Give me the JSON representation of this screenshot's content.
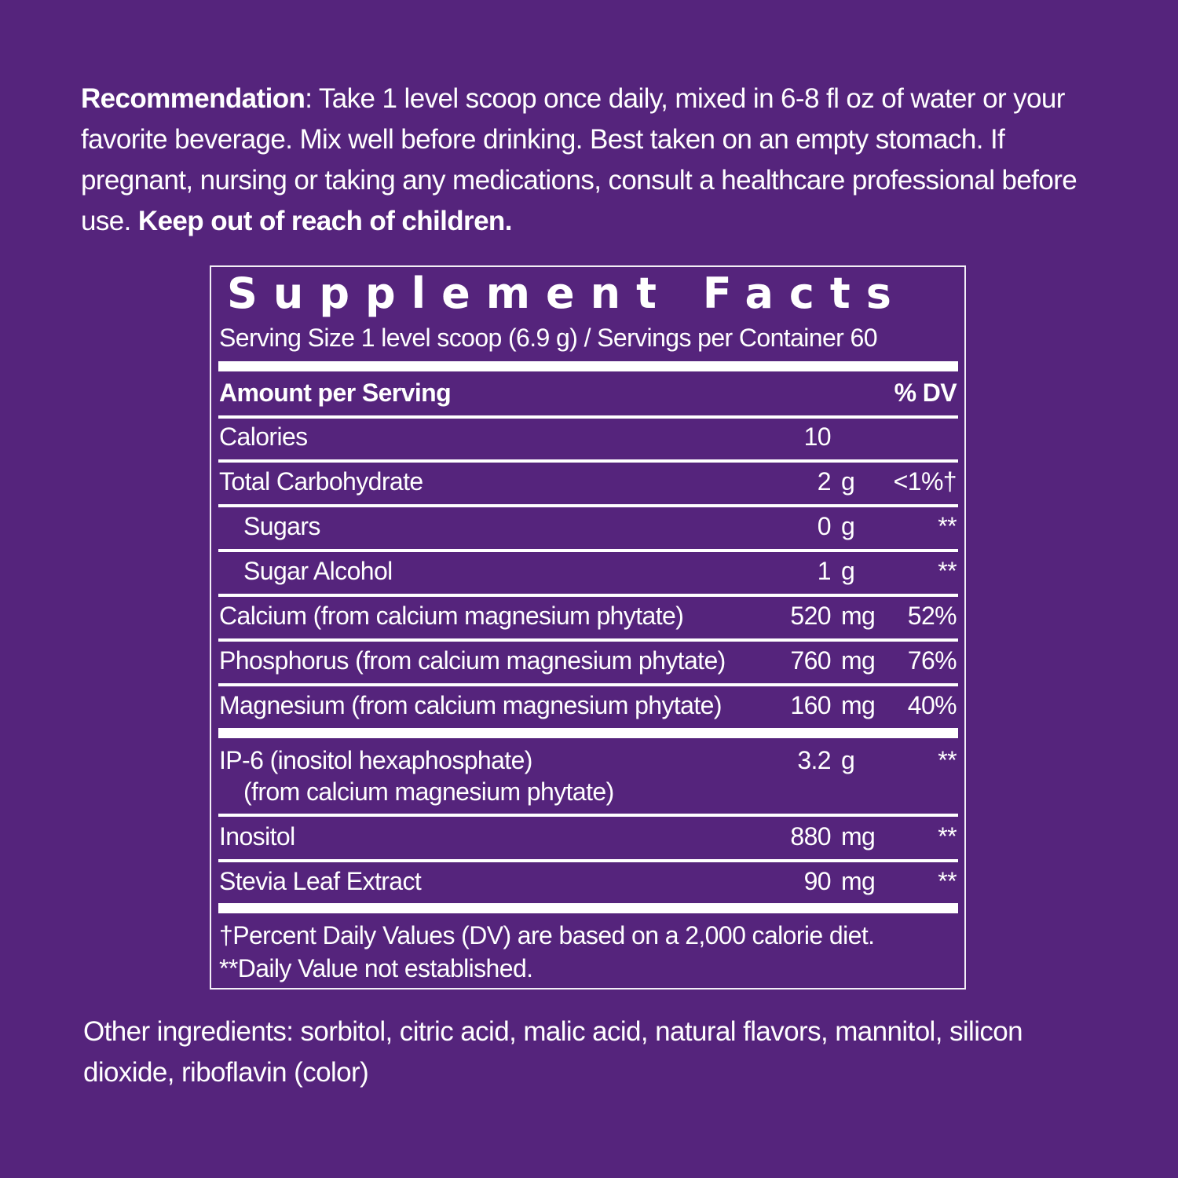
{
  "recommendation": {
    "label": "Recommendation",
    "text": ": Take 1 level scoop once daily, mixed in 6-8 fl oz of water or your favorite beverage. Mix well before drinking. Best taken on an empty stomach. If pregnant, nursing or taking any medications, consult a healthcare professional before use. ",
    "warning": "Keep out of reach of children."
  },
  "facts": {
    "title": "Supplement Facts",
    "serving": "Serving Size 1 level scoop (6.9 g) / Servings per Container 60",
    "header_amount": "Amount per Serving",
    "header_dv": "% DV",
    "rows": [
      {
        "name": "Calories",
        "amount": "10",
        "unit": "",
        "dv": ""
      },
      {
        "name": "Total Carbohydrate",
        "amount": "2",
        "unit": "g",
        "dv": "<1%†"
      },
      {
        "name": "Sugars",
        "amount": "0",
        "unit": "g",
        "dv": "**"
      },
      {
        "name": "Sugar Alcohol",
        "amount": "1",
        "unit": "g",
        "dv": "**"
      },
      {
        "name": "Calcium (from calcium magnesium phytate)",
        "amount": "520",
        "unit": "mg",
        "dv": "52%"
      },
      {
        "name": "Phosphorus (from calcium magnesium phytate)",
        "amount": "760",
        "unit": "mg",
        "dv": "76%"
      },
      {
        "name": "Magnesium (from calcium magnesium phytate)",
        "amount": "160",
        "unit": "mg",
        "dv": "40%"
      },
      {
        "name": "IP-6 (inositol hexaphosphate)",
        "sub": "(from calcium magnesium phytate)",
        "amount": "3.2",
        "unit": "g",
        "dv": "**"
      },
      {
        "name": "Inositol",
        "amount": "880",
        "unit": "mg",
        "dv": "**"
      },
      {
        "name": "Stevia Leaf Extract",
        "amount": "90",
        "unit": "mg",
        "dv": "**"
      }
    ],
    "footnote_1": "†Percent Daily Values (DV) are based on a 2,000 calorie diet.",
    "footnote_2": "**Daily Value not established."
  },
  "other_ingredients": "Other ingredients: sorbitol, citric acid, malic acid, natural flavors, mannitol, silicon dioxide, riboflavin (color)",
  "colors": {
    "background": "#55247c",
    "text": "#ffffff"
  }
}
